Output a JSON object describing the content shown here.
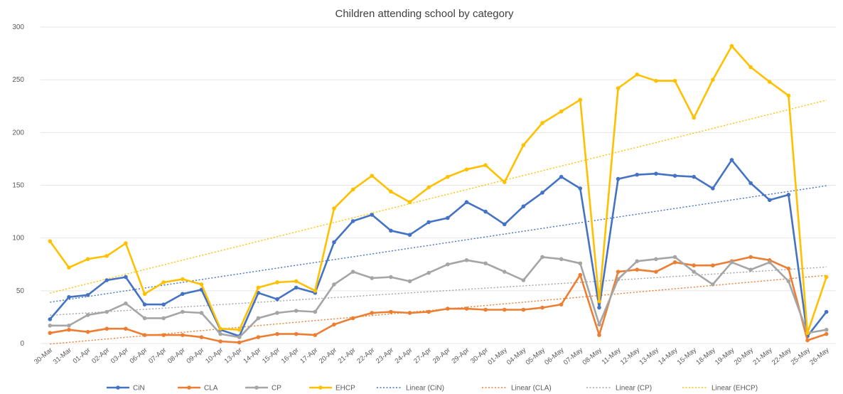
{
  "chart_data": {
    "type": "line",
    "title": "Children attending school by category",
    "ylim": [
      0,
      300
    ],
    "yticks": [
      0,
      50,
      100,
      150,
      200,
      250,
      300
    ],
    "grid": true,
    "legend_position": "bottom",
    "categories": [
      "30-Mar",
      "31-Mar",
      "01-Apr",
      "02-Apr",
      "03-Apr",
      "06-Apr",
      "07-Apr",
      "08-Apr",
      "09-Apr",
      "10-Apr",
      "13-Apr",
      "14-Apr",
      "15-Apr",
      "16-Apr",
      "17-Apr",
      "20-Apr",
      "21-Apr",
      "22-Apr",
      "23-Apr",
      "24-Apr",
      "27-Apr",
      "28-Apr",
      "29-Apr",
      "30-Apr",
      "01-May",
      "04-May",
      "05-May",
      "06-May",
      "07-May",
      "08-May",
      "11-May",
      "12-May",
      "13-May",
      "14-May",
      "15-May",
      "18-May",
      "19-May",
      "20-May",
      "21-May",
      "22-May",
      "25-May",
      "26-May"
    ],
    "series": [
      {
        "name": "CiN",
        "color": "#4472c4",
        "values": [
          23,
          44,
          46,
          60,
          63,
          37,
          37,
          47,
          51,
          13,
          7,
          48,
          42,
          53,
          48,
          96,
          116,
          122,
          107,
          103,
          115,
          119,
          134,
          125,
          113,
          130,
          143,
          158,
          147,
          34,
          156,
          160,
          161,
          159,
          158,
          147,
          174,
          152,
          136,
          141,
          7,
          30
        ]
      },
      {
        "name": "CLA",
        "color": "#ed7d31",
        "values": [
          10,
          13,
          11,
          14,
          14,
          8,
          8,
          8,
          6,
          2,
          1,
          6,
          9,
          9,
          8,
          18,
          24,
          29,
          30,
          29,
          30,
          33,
          33,
          32,
          32,
          32,
          34,
          37,
          65,
          8,
          68,
          70,
          68,
          77,
          74,
          74,
          78,
          82,
          79,
          71,
          3,
          9
        ]
      },
      {
        "name": "CP",
        "color": "#a5a5a5",
        "values": [
          17,
          17,
          27,
          30,
          38,
          24,
          24,
          30,
          29,
          9,
          6,
          24,
          29,
          31,
          30,
          56,
          68,
          62,
          63,
          59,
          67,
          75,
          79,
          76,
          68,
          60,
          82,
          80,
          76,
          18,
          61,
          78,
          80,
          82,
          68,
          56,
          77,
          70,
          77,
          59,
          10,
          13
        ]
      },
      {
        "name": "EHCP",
        "color": "#ffc000",
        "values": [
          97,
          72,
          80,
          83,
          95,
          47,
          58,
          61,
          56,
          14,
          13,
          53,
          58,
          59,
          50,
          128,
          146,
          159,
          144,
          134,
          148,
          158,
          165,
          169,
          153,
          188,
          209,
          220,
          231,
          40,
          242,
          255,
          249,
          249,
          214,
          250,
          282,
          262,
          248,
          235,
          10,
          63
        ]
      }
    ],
    "trendlines": [
      {
        "name": "Linear (CiN)",
        "color": "#4472c4"
      },
      {
        "name": "Linear (CLA)",
        "color": "#ed7d31"
      },
      {
        "name": "Linear (CP)",
        "color": "#a5a5a5"
      },
      {
        "name": "Linear (EHCP)",
        "color": "#ffc000"
      }
    ]
  }
}
